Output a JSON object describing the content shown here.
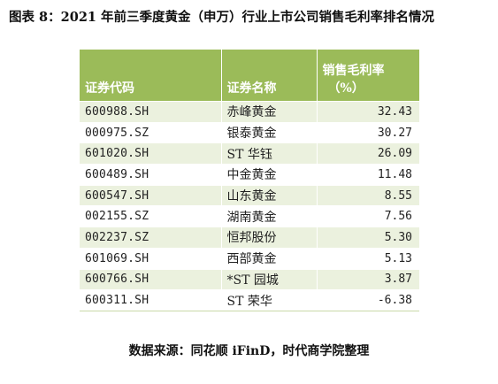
{
  "title": "图表 8：2021 年前三季度黄金（申万）行业上市公司销售毛利率排名情况",
  "source": "数据来源：同花顺 iFinD，时代商学院整理",
  "chart_data": {
    "type": "table",
    "title": "图表 8：2021 年前三季度黄金（申万）行业上市公司销售毛利率排名情况",
    "columns": [
      "证券代码",
      "证券名称",
      "销售毛利率",
      "（%）"
    ],
    "header": {
      "code": "证券代码",
      "name": "证券名称",
      "margin_line1": "销售毛利率",
      "margin_line2": "（%）"
    },
    "rows": [
      {
        "code": "600988.SH",
        "name": "赤峰黄金",
        "value": "32.43"
      },
      {
        "code": "000975.SZ",
        "name": "银泰黄金",
        "value": "30.27"
      },
      {
        "code": "601020.SH",
        "name": "ST 华钰",
        "value": "26.09"
      },
      {
        "code": "600489.SH",
        "name": "中金黄金",
        "value": "11.48"
      },
      {
        "code": "600547.SH",
        "name": "山东黄金",
        "value": "8.55"
      },
      {
        "code": "002155.SZ",
        "name": "湖南黄金",
        "value": "7.56"
      },
      {
        "code": "002237.SZ",
        "name": "恒邦股份",
        "value": "5.30"
      },
      {
        "code": "601069.SH",
        "name": "西部黄金",
        "value": "5.13"
      },
      {
        "code": "600766.SH",
        "name": "*ST 园城",
        "value": "3.87"
      },
      {
        "code": "600311.SH",
        "name": "ST 荣华",
        "value": "-6.38"
      }
    ],
    "colors": {
      "header_bg": "#9bbb59",
      "header_text": "#ffffff",
      "band_bg": "#ebf1de"
    }
  }
}
